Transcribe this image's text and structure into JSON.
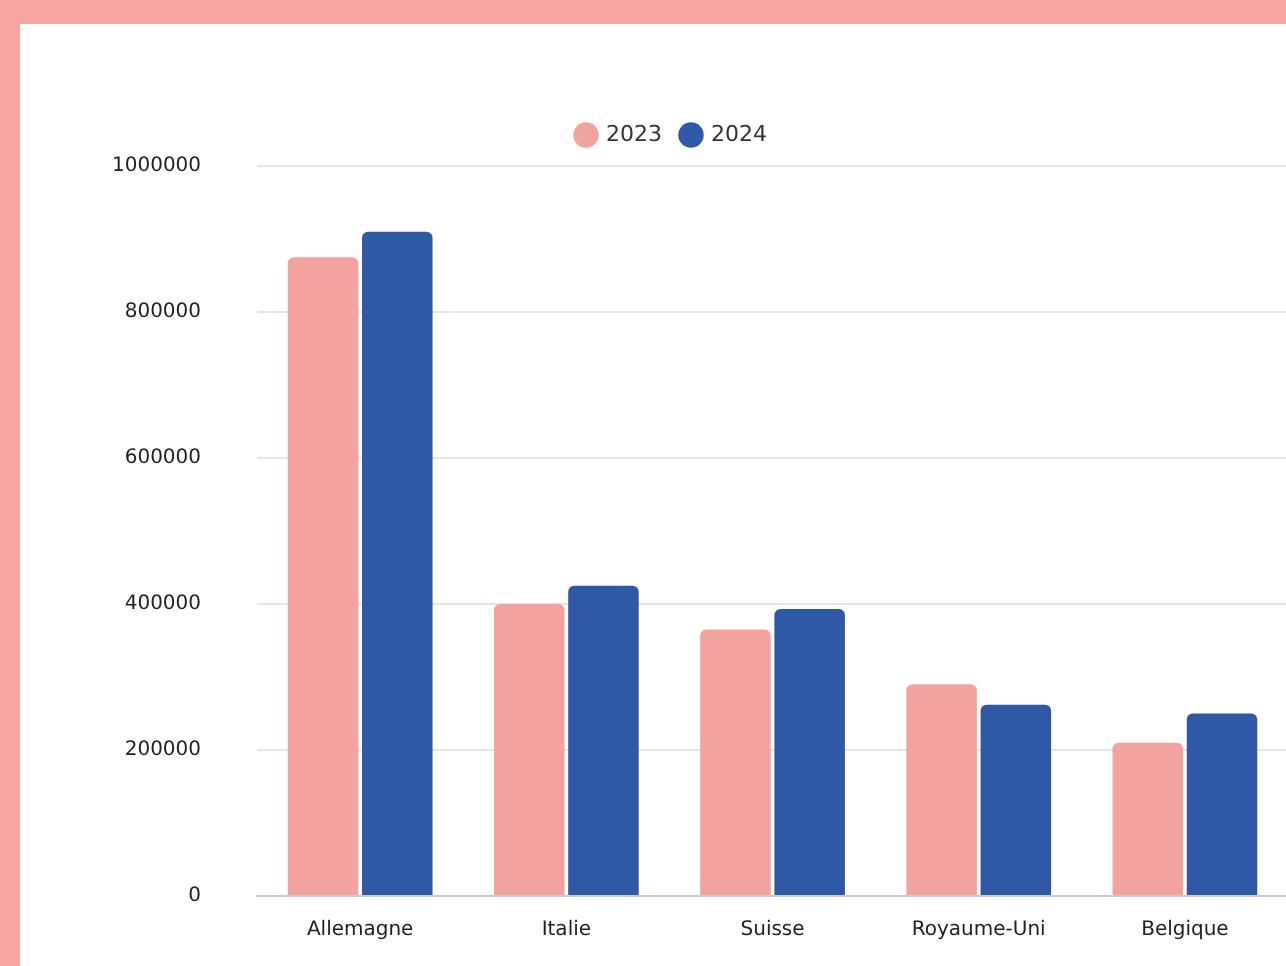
{
  "chart_data": {
    "type": "bar",
    "categories": [
      "Allemagne",
      "Italie",
      "Suisse",
      "Royaume-Uni",
      "Belgique"
    ],
    "series": [
      {
        "name": "2023",
        "color": "#f2a3a0",
        "values": [
          875000,
          400000,
          365000,
          290000,
          210000
        ]
      },
      {
        "name": "2024",
        "color": "#2f58a6",
        "values": [
          910000,
          425000,
          393000,
          262000,
          250000
        ]
      }
    ],
    "ylim": [
      0,
      1000000
    ],
    "yticks": [
      0,
      200000,
      400000,
      600000,
      800000,
      1000000
    ],
    "grid": "y",
    "legend": "top"
  }
}
